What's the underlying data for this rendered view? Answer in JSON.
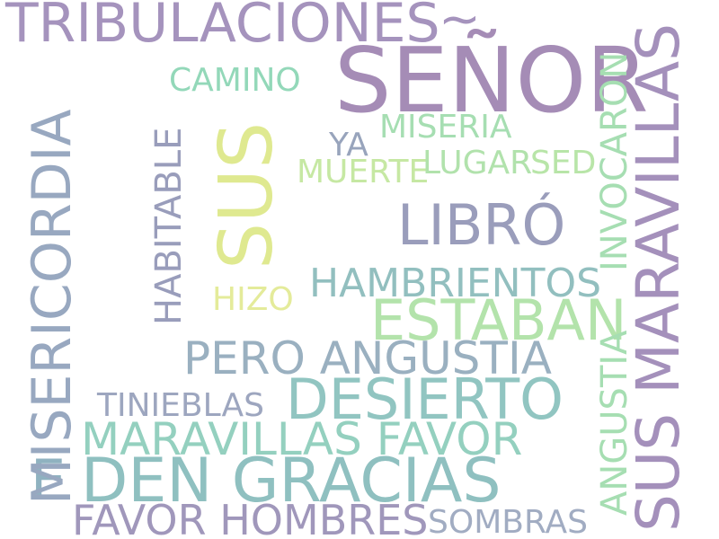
{
  "words": [
    {
      "id": "tribulaciones",
      "text": "TRIBULACIONES",
      "color": "#a593bd"
    },
    {
      "id": "tilde",
      "text": "~",
      "color": "#a593bd"
    },
    {
      "id": "senor",
      "text": "SEÑOR",
      "color": "#a58cb6"
    },
    {
      "id": "camino",
      "text": "CAMINO",
      "color": "#93d8b9"
    },
    {
      "id": "miseria",
      "text": "MISERIA",
      "color": "#a6deb2"
    },
    {
      "id": "ya",
      "text": "YA",
      "color": "#98a4bc"
    },
    {
      "id": "muerte",
      "text": "MUERTE",
      "color": "#c6e8a3"
    },
    {
      "id": "lugar",
      "text": "LUGAR",
      "color": "#b1e2ac"
    },
    {
      "id": "sed",
      "text": "SED",
      "color": "#b8e5a8"
    },
    {
      "id": "libro",
      "text": "LIBRÓ",
      "color": "#9a9dbb"
    },
    {
      "id": "hambrientos",
      "text": "HAMBRIENTOS",
      "color": "#92bfbf"
    },
    {
      "id": "hizo",
      "text": "HIZO",
      "color": "#e4eb9a"
    },
    {
      "id": "estaban",
      "text": "ESTABAN",
      "color": "#b3e3ab"
    },
    {
      "id": "pero-angustia",
      "text": "PERO ANGUSTIA",
      "color": "#9ab0c0"
    },
    {
      "id": "tinieblas",
      "text": "TINIEBLAS",
      "color": "#9da6bf"
    },
    {
      "id": "desierto",
      "text": "DESIERTO",
      "color": "#91c5c1"
    },
    {
      "id": "maravillas-favor",
      "text": "MARAVILLAS FAVOR",
      "color": "#94d0bf"
    },
    {
      "id": "e",
      "text": "E",
      "color": "#8fb2c0"
    },
    {
      "id": "den-gracias",
      "text": "DEN GRACIAS",
      "color": "#8fc0c0"
    },
    {
      "id": "favor-hombres",
      "text": "FAVOR HOMBRES",
      "color": "#a097bb"
    },
    {
      "id": "sombras",
      "text": "SOMBRAS",
      "color": "#a1acc2"
    },
    {
      "id": "misericordia",
      "text": "MISERICORDIA",
      "color": "#98a8c0"
    },
    {
      "id": "habitable",
      "text": "HABITABLE",
      "color": "#999dbb"
    },
    {
      "id": "sus",
      "text": "SUS",
      "color": "#dfe990"
    },
    {
      "id": "invocaron",
      "text": "INVOCARON",
      "color": "#a6deb2"
    },
    {
      "id": "angustia",
      "text": "ANGUSTIA",
      "color": "#a6deb2"
    },
    {
      "id": "sus-maravillas",
      "text": "SUS MARAVILLAS",
      "color": "#a490bb"
    }
  ]
}
